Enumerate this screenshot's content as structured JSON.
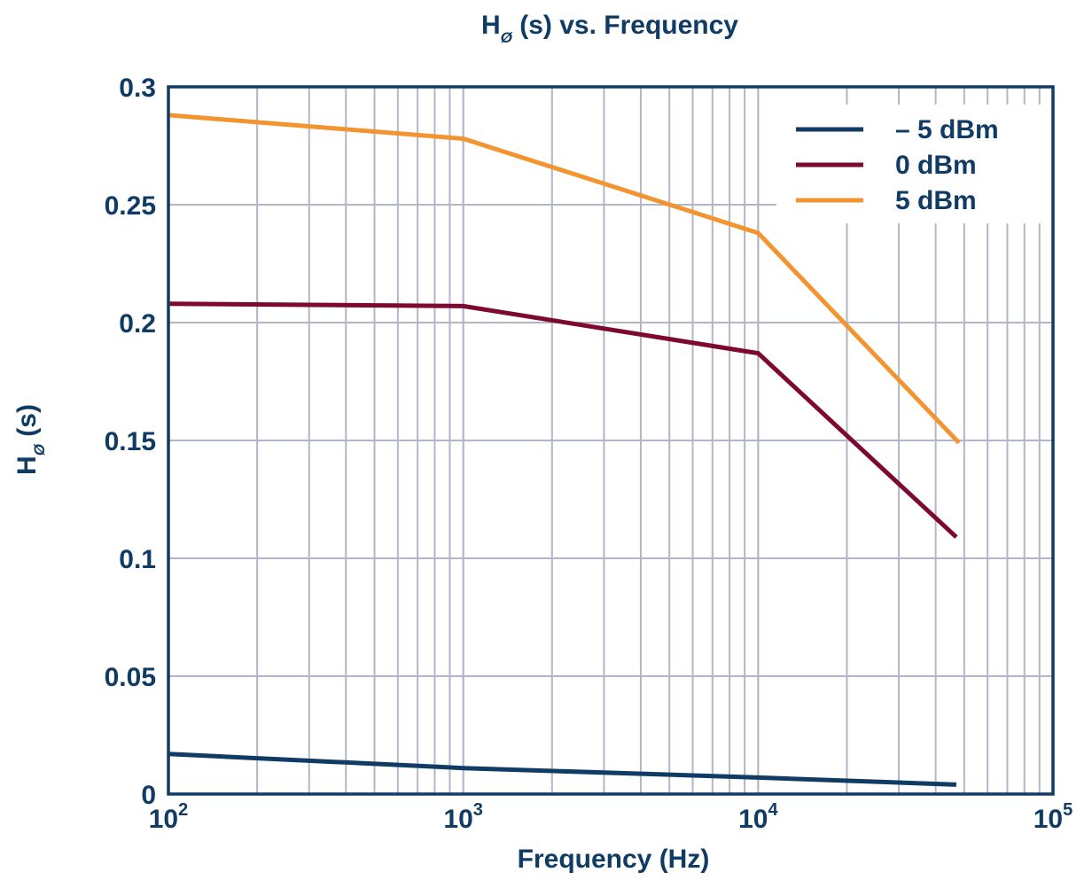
{
  "chart_data": {
    "type": "line",
    "title": {
      "main": "H",
      "sub": "Ø",
      "rest": " (s) vs. Frequency"
    },
    "xlabel": "Frequency (Hz)",
    "ylabel": {
      "main": "H",
      "sub": "Ø",
      "rest": " (s)"
    },
    "x_scale": "log",
    "xlim": [
      100,
      100000
    ],
    "ylim": [
      0,
      0.3
    ],
    "grid": true,
    "legend_position": "top-right",
    "x_ticks": [
      {
        "value": 100,
        "base": "10",
        "exp": "2"
      },
      {
        "value": 1000,
        "base": "10",
        "exp": "3"
      },
      {
        "value": 10000,
        "base": "10",
        "exp": "4"
      },
      {
        "value": 100000,
        "base": "10",
        "exp": "5"
      }
    ],
    "y_ticks": [
      {
        "value": 0,
        "label": "0"
      },
      {
        "value": 0.05,
        "label": "0.05"
      },
      {
        "value": 0.1,
        "label": "0.1"
      },
      {
        "value": 0.15,
        "label": "0.15"
      },
      {
        "value": 0.2,
        "label": "0.2"
      },
      {
        "value": 0.25,
        "label": "0.25"
      },
      {
        "value": 0.3,
        "label": "0.3"
      }
    ],
    "series": [
      {
        "name": "– 5 dBm",
        "color": "#0f3b64",
        "x": [
          100,
          1000,
          10000,
          47000
        ],
        "y": [
          0.017,
          0.011,
          0.007,
          0.004
        ]
      },
      {
        "name": "0 dBm",
        "color": "#7d0a2e",
        "x": [
          100,
          1000,
          10000,
          47000
        ],
        "y": [
          0.208,
          0.207,
          0.187,
          0.109
        ]
      },
      {
        "name": "5 dBm",
        "color": "#f29530",
        "x": [
          100,
          1000,
          10000,
          48000
        ],
        "y": [
          0.288,
          0.278,
          0.238,
          0.149
        ]
      }
    ],
    "colors": {
      "axis": "#0f3b64",
      "grid": "#b3b6c9",
      "text": "#0f3b64"
    }
  }
}
